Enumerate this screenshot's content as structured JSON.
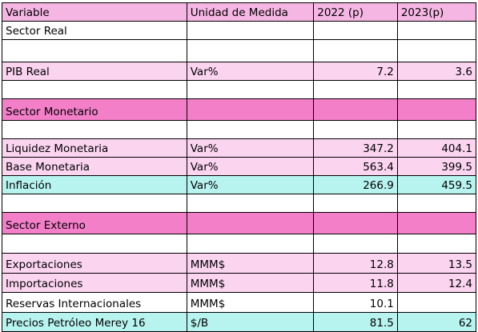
{
  "colors": {
    "pink": "#f5b6e3",
    "deep_pink": "#f37fc9",
    "light_pink": "#fbd4f0",
    "white": "#ffffff",
    "cyan": "#b8f4ef"
  },
  "table": {
    "header": [
      "Variable",
      "Unidad de Medida",
      "2022 (p)",
      "2023(p)"
    ],
    "rows": [
      {
        "cells": [
          "Sector Real",
          "",
          "",
          ""
        ],
        "bg": "white",
        "h": 22
      },
      {
        "cells": [
          "",
          "",
          "",
          ""
        ],
        "bg": "white",
        "h": 27
      },
      {
        "cells": [
          "PIB Real",
          "Var%",
          "7.2",
          "3.6"
        ],
        "bg": "light_pink",
        "h": 22
      },
      {
        "cells": [
          "",
          "",
          "",
          ""
        ],
        "bg": "white",
        "h": 22
      },
      {
        "cells": [
          "Sector Monetario",
          "",
          "",
          ""
        ],
        "bg": "deep_pink",
        "h": 26
      },
      {
        "cells": [
          "",
          "",
          "",
          ""
        ],
        "bg": "white",
        "h": 22
      },
      {
        "cells": [
          "Liquidez Monetaria",
          "Var%",
          "347.2",
          "404.1"
        ],
        "bg": "light_pink",
        "h": 22
      },
      {
        "cells": [
          "Base Monetaria",
          "Var%",
          "563.4",
          "399.5"
        ],
        "bg": "light_pink",
        "h": 22
      },
      {
        "cells": [
          "Inflación",
          "Var%",
          "266.9",
          "459.5"
        ],
        "bg": "cyan",
        "h": 22
      },
      {
        "cells": [
          "",
          "",
          "",
          ""
        ],
        "bg": "white",
        "h": 22
      },
      {
        "cells": [
          "Sector Externo",
          "",
          "",
          ""
        ],
        "bg": "deep_pink",
        "h": 26
      },
      {
        "cells": [
          "",
          "",
          "",
          ""
        ],
        "bg": "white",
        "h": 23
      },
      {
        "cells": [
          "Exportaciones",
          "MMM$",
          "12.8",
          "13.5"
        ],
        "bg": "light_pink",
        "h": 24
      },
      {
        "cells": [
          "Importaciones",
          "MMM$",
          "11.8",
          "12.4"
        ],
        "bg": "light_pink",
        "h": 23
      },
      {
        "cells": [
          "Reservas Internacionales",
          "MMM$",
          "10.1",
          ""
        ],
        "bg": "white",
        "h": 24
      },
      {
        "cells": [
          "Precios Petróleo Merey 16",
          "$/B",
          "81.5",
          "62"
        ],
        "bg": "cyan",
        "h": 23
      }
    ]
  }
}
